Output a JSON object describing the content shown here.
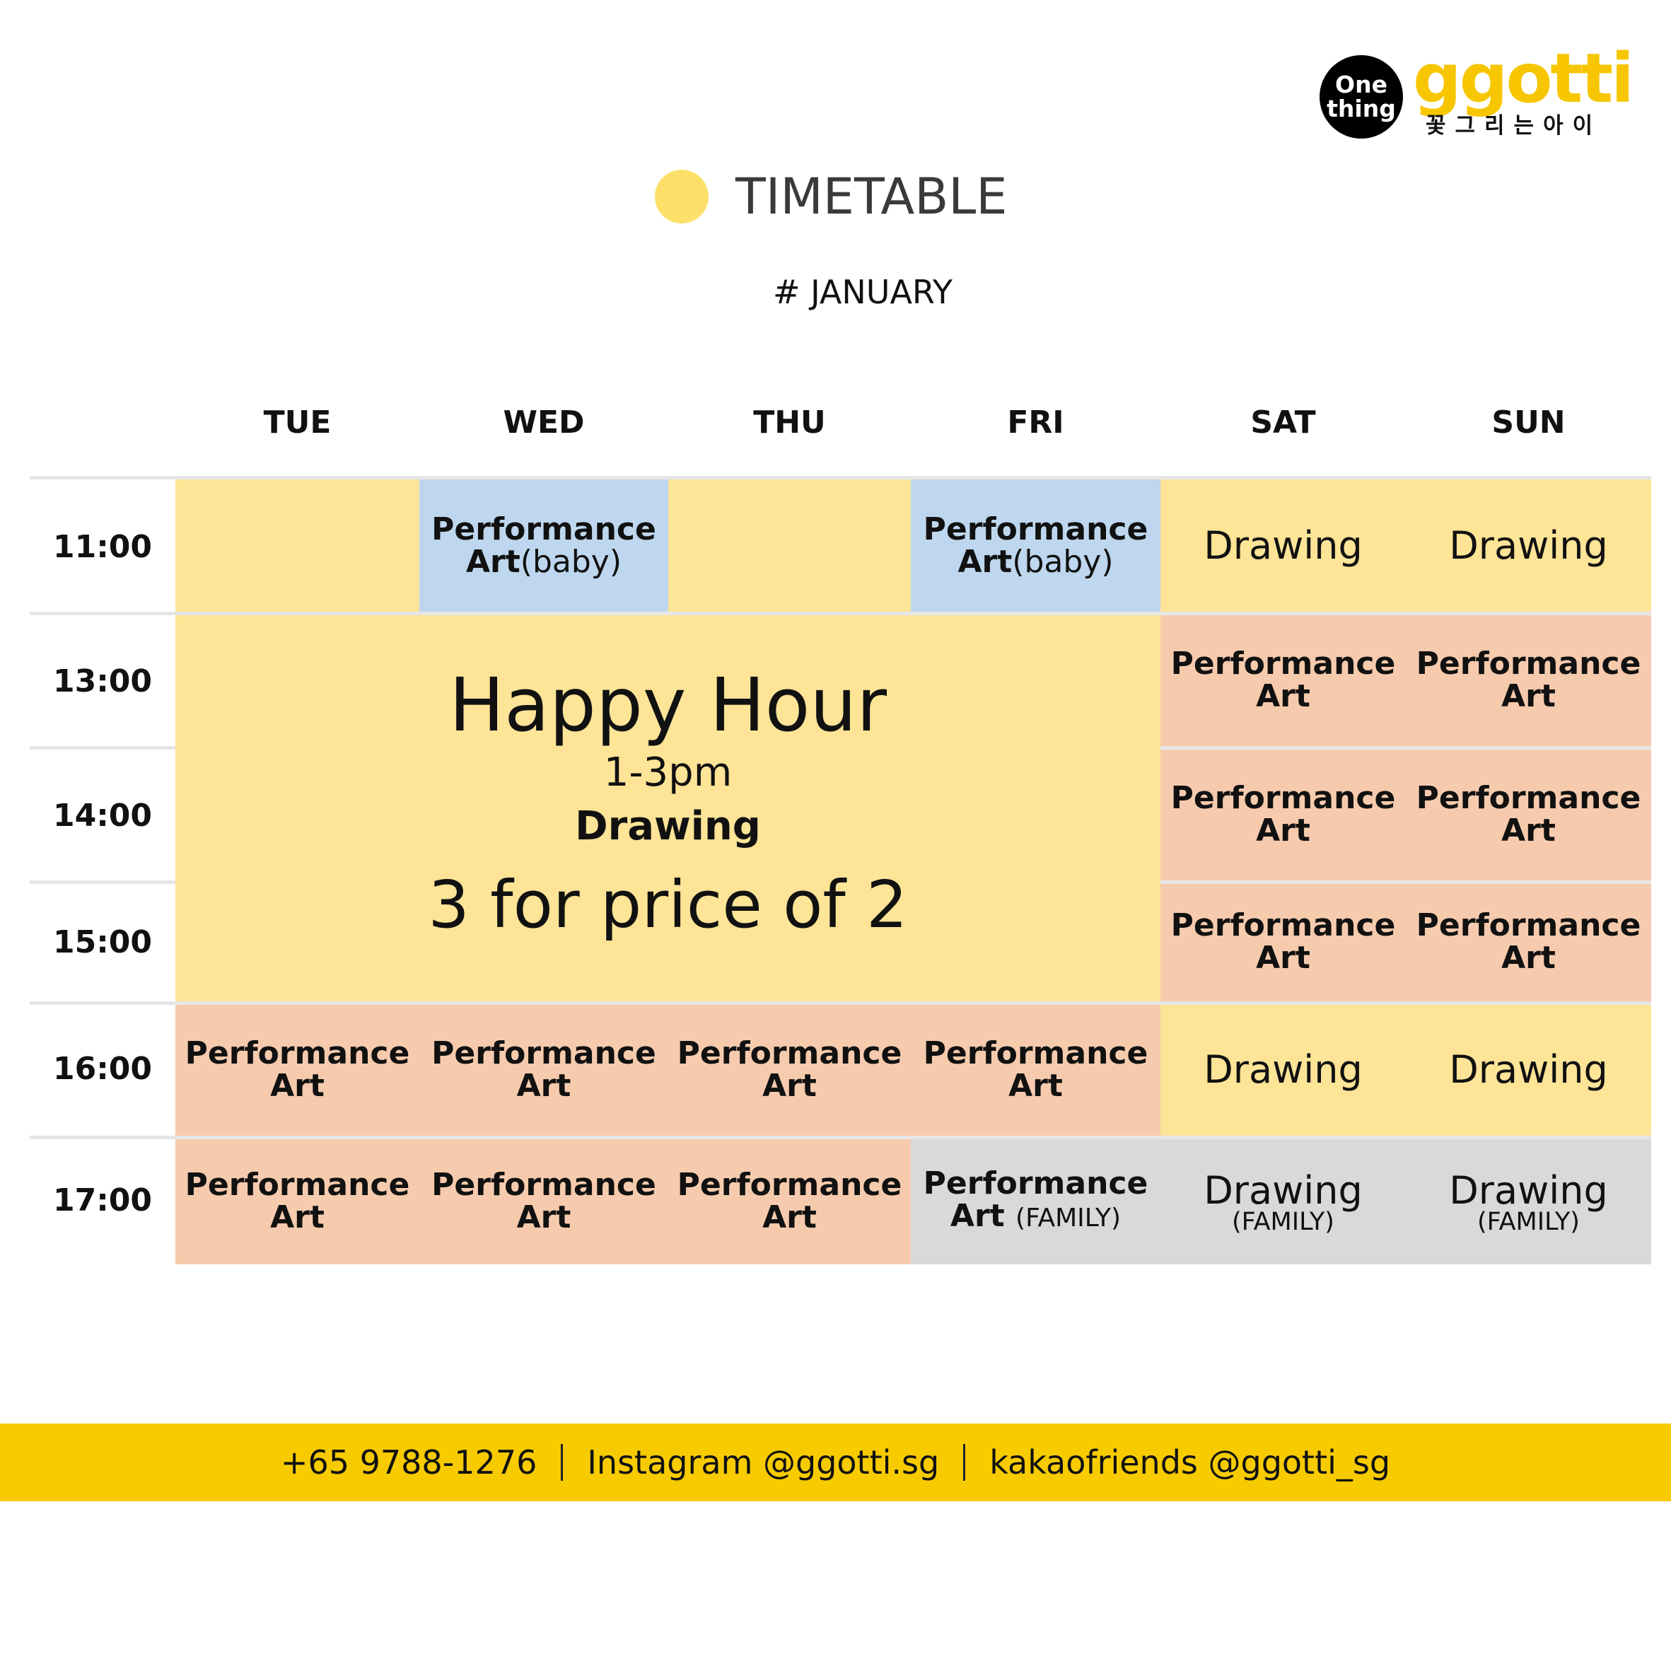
{
  "brand": {
    "badge_line1": "One",
    "badge_line2": "thing",
    "wordmark": "ggotti",
    "korean": "꽃그리는아이",
    "accent_color": "#f7c600"
  },
  "title": "TIMETABLE",
  "subtitle": "# JANUARY",
  "days": [
    "TUE",
    "WED",
    "THU",
    "FRI",
    "SAT",
    "SUN"
  ],
  "times": [
    "11:00",
    "13:00",
    "14:00",
    "15:00",
    "16:00",
    "17:00"
  ],
  "labels": {
    "performance": "Performance",
    "art": "Art",
    "baby": "(baby)",
    "drawing": "Drawing",
    "family_paren": "(FAMILY)"
  },
  "happy_hour": {
    "title": "Happy Hour",
    "time": "1-3pm",
    "activity": "Drawing",
    "offer": "3 for price of 2"
  },
  "colors": {
    "yellow": "#fde497",
    "blue": "#bed7ee",
    "peach": "#f6cbad",
    "grey": "#d9d9d9",
    "footer": "#f7cb00"
  },
  "footer": {
    "phone": "+65 9788-1276",
    "instagram": "Instagram @ggotti.sg",
    "kakao": "kakaofriends @ggotti_sg"
  }
}
